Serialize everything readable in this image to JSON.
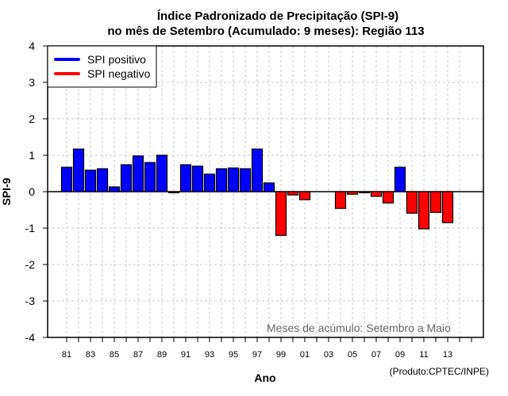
{
  "chart_data": {
    "type": "bar",
    "title": "Índice Padronizado de Precipitação (SPI-9)",
    "subtitle": "no mês de Setembro (Acumulado: 9 meses): Região 113",
    "xlabel": "Ano",
    "ylabel": "SPI-9",
    "ylim": [
      -4,
      4
    ],
    "yticks": [
      -4,
      -3,
      -2,
      -1,
      0,
      1,
      2,
      3,
      4
    ],
    "grid": true,
    "legend_position": "top-left",
    "legend": [
      {
        "label": "SPI positivo",
        "color": "#0000ff"
      },
      {
        "label": "SPI negativo",
        "color": "#ff0000"
      }
    ],
    "annotation": "Meses de acúmulo: Setembro a Maio",
    "credit": "(Produto:CPTEC/INPE)",
    "categories": [
      "1981",
      "1982",
      "1983",
      "1984",
      "1985",
      "1986",
      "1987",
      "1988",
      "1989",
      "1990",
      "1991",
      "1992",
      "1993",
      "1994",
      "1995",
      "1996",
      "1997",
      "1998",
      "1999",
      "2000",
      "2001",
      "2002",
      "2003",
      "2004",
      "2005",
      "2006",
      "2007",
      "2008",
      "2009",
      "2010",
      "2011",
      "2012",
      "2013"
    ],
    "xtick_labels": [
      "81",
      "83",
      "85",
      "87",
      "89",
      "91",
      "93",
      "95",
      "97",
      "99",
      "01",
      "03",
      "05",
      "07",
      "09",
      "11",
      "13"
    ],
    "values": [
      0.67,
      1.17,
      0.59,
      0.63,
      0.13,
      0.74,
      0.98,
      0.8,
      1.0,
      -0.03,
      0.74,
      0.7,
      0.48,
      0.63,
      0.65,
      0.63,
      1.17,
      0.24,
      -1.2,
      -0.09,
      -0.22,
      0.0,
      0.0,
      -0.46,
      -0.07,
      -0.03,
      -0.13,
      -0.31,
      0.67,
      -0.59,
      -1.02,
      -0.57,
      -0.85
    ],
    "colors": {
      "positive": "#0000ff",
      "negative": "#ff0000"
    }
  }
}
